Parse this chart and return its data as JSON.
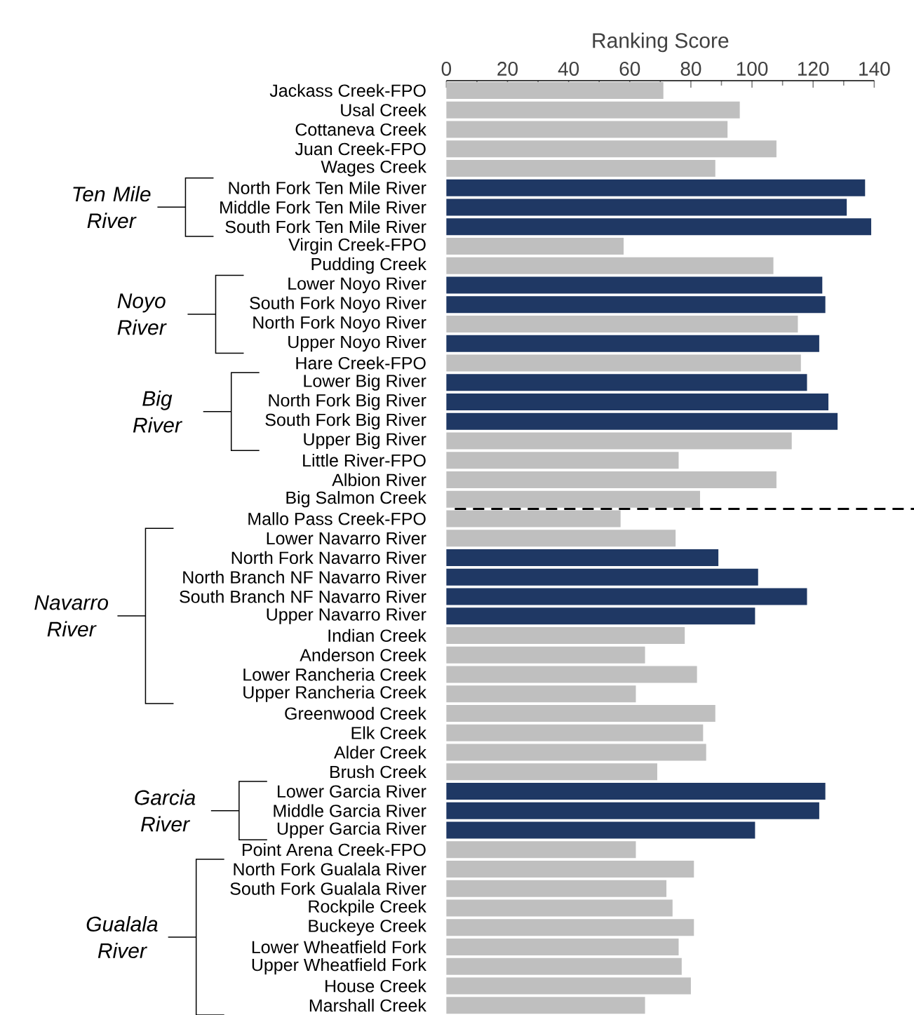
{
  "chart_data": {
    "type": "bar",
    "orientation": "horizontal",
    "xlabel": "Ranking Score",
    "categories": [
      "Jackass Creek-FPO",
      "Usal Creek",
      "Cottaneva Creek",
      "Juan Creek-FPO",
      "Wages Creek",
      "North Fork Ten Mile River",
      "Middle Fork Ten Mile River",
      "South Fork Ten Mile River",
      "Virgin Creek-FPO",
      "Pudding Creek",
      "Lower Noyo River",
      "South Fork Noyo River",
      "North Fork Noyo River",
      "Upper Noyo River",
      "Hare Creek-FPO",
      "Lower Big River",
      "North Fork Big River",
      "South Fork Big River",
      "Upper Big River",
      "Little River-FPO",
      "Albion River",
      "Big Salmon Creek",
      "Mallo Pass Creek-FPO",
      "Lower Navarro River",
      "North Fork Navarro River",
      "North Branch NF Navarro River",
      "South Branch NF Navarro River",
      "Upper Navarro River",
      "Indian Creek",
      "Anderson Creek",
      "Lower Rancheria Creek",
      "Upper Rancheria Creek",
      "Greenwood Creek",
      "Elk Creek",
      "Alder Creek",
      "Brush Creek",
      "Lower Garcia River",
      "Middle Garcia River",
      "Upper Garcia River",
      "Point Arena Creek-FPO",
      "North Fork Gualala River",
      "South Fork Gualala River",
      "Rockpile Creek",
      "Buckeye Creek",
      "Lower Wheatfield Fork",
      "Upper Wheatfield Fork",
      "House Creek",
      "Marshall Creek"
    ],
    "values": [
      71,
      96,
      92,
      108,
      88,
      137,
      131,
      139,
      58,
      107,
      123,
      124,
      115,
      122,
      116,
      118,
      125,
      128,
      113,
      76,
      108,
      83,
      57,
      75,
      89,
      102,
      118,
      101,
      78,
      65,
      82,
      62,
      88,
      84,
      85,
      69,
      124,
      122,
      101,
      62,
      81,
      72,
      74,
      81,
      76,
      77,
      80,
      65
    ],
    "colors": [
      "#bfbfbf",
      "#bfbfbf",
      "#bfbfbf",
      "#bfbfbf",
      "#bfbfbf",
      "#1f3864",
      "#1f3864",
      "#1f3864",
      "#bfbfbf",
      "#bfbfbf",
      "#1f3864",
      "#1f3864",
      "#bfbfbf",
      "#1f3864",
      "#bfbfbf",
      "#1f3864",
      "#1f3864",
      "#1f3864",
      "#bfbfbf",
      "#bfbfbf",
      "#bfbfbf",
      "#bfbfbf",
      "#bfbfbf",
      "#bfbfbf",
      "#1f3864",
      "#1f3864",
      "#1f3864",
      "#1f3864",
      "#bfbfbf",
      "#bfbfbf",
      "#bfbfbf",
      "#bfbfbf",
      "#bfbfbf",
      "#bfbfbf",
      "#bfbfbf",
      "#bfbfbf",
      "#1f3864",
      "#1f3864",
      "#1f3864",
      "#bfbfbf",
      "#bfbfbf",
      "#bfbfbf",
      "#bfbfbf",
      "#bfbfbf",
      "#bfbfbf",
      "#bfbfbf",
      "#bfbfbf",
      "#bfbfbf"
    ],
    "xlim": [
      0,
      140
    ],
    "xticks": [
      0,
      20,
      40,
      60,
      80,
      100,
      120,
      140
    ],
    "annotations": [
      "Ten Mile River",
      "Noyo River",
      "Big River",
      "Navarro River",
      "Garcia River",
      "Gualala River"
    ]
  }
}
